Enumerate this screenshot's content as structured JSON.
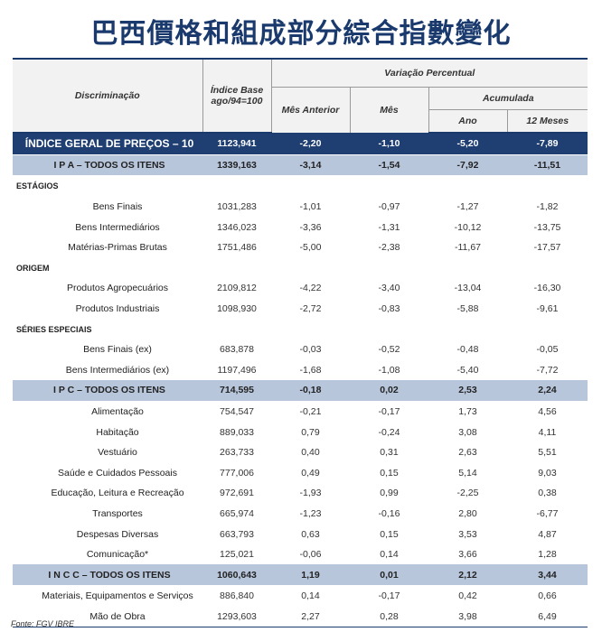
{
  "title": "巴西價格和組成部分綜合指數變化",
  "header": {
    "discriminacao": "Discriminação",
    "indice_base": "Índice Base ago/94=100",
    "variacao": "Variação Percentual",
    "mes_anterior": "Mês Anterior",
    "mes": "Mês",
    "acumulada": "Acumulada",
    "ano": "Ano",
    "doze_meses": "12 Meses"
  },
  "rows": [
    {
      "type": "general",
      "label": "ÍNDICE GERAL DE PREÇOS – 10",
      "index": "1123,941",
      "mes_anterior": "-2,20",
      "mes": "-1,10",
      "ano": "-5,20",
      "doze": "-7,89"
    },
    {
      "type": "group",
      "label": "I P A – TODOS OS ITENS",
      "index": "1339,163",
      "mes_anterior": "-3,14",
      "mes": "-1,54",
      "ano": "-7,92",
      "doze": "-11,51"
    },
    {
      "type": "section",
      "label": "ESTÁGIOS"
    },
    {
      "type": "item",
      "label": "Bens Finais",
      "index": "1031,283",
      "mes_anterior": "-1,01",
      "mes": "-0,97",
      "ano": "-1,27",
      "doze": "-1,82"
    },
    {
      "type": "item",
      "label": "Bens Intermediários",
      "index": "1346,023",
      "mes_anterior": "-3,36",
      "mes": "-1,31",
      "ano": "-10,12",
      "doze": "-13,75"
    },
    {
      "type": "item",
      "label": "Matérias-Primas Brutas",
      "index": "1751,486",
      "mes_anterior": "-5,00",
      "mes": "-2,38",
      "ano": "-11,67",
      "doze": "-17,57"
    },
    {
      "type": "section",
      "label": "ORIGEM"
    },
    {
      "type": "item",
      "label": "Produtos Agropecuários",
      "index": "2109,812",
      "mes_anterior": "-4,22",
      "mes": "-3,40",
      "ano": "-13,04",
      "doze": "-16,30"
    },
    {
      "type": "item",
      "label": "Produtos Industriais",
      "index": "1098,930",
      "mes_anterior": "-2,72",
      "mes": "-0,83",
      "ano": "-5,88",
      "doze": "-9,61"
    },
    {
      "type": "section",
      "label": "SÉRIES ESPECIAIS"
    },
    {
      "type": "item",
      "label": "Bens Finais (ex)",
      "index": "683,878",
      "mes_anterior": "-0,03",
      "mes": "-0,52",
      "ano": "-0,48",
      "doze": "-0,05"
    },
    {
      "type": "item",
      "label": "Bens Intermediários (ex)",
      "index": "1197,496",
      "mes_anterior": "-1,68",
      "mes": "-1,08",
      "ano": "-5,40",
      "doze": "-7,72"
    },
    {
      "type": "group",
      "label": "I P C – TODOS OS ITENS",
      "index": "714,595",
      "mes_anterior": "-0,18",
      "mes": "0,02",
      "ano": "2,53",
      "doze": "2,24"
    },
    {
      "type": "item",
      "label": "Alimentação",
      "index": "754,547",
      "mes_anterior": "-0,21",
      "mes": "-0,17",
      "ano": "1,73",
      "doze": "4,56"
    },
    {
      "type": "item",
      "label": "Habitação",
      "index": "889,033",
      "mes_anterior": "0,79",
      "mes": "-0,24",
      "ano": "3,08",
      "doze": "4,11"
    },
    {
      "type": "item",
      "label": "Vestuário",
      "index": "263,733",
      "mes_anterior": "0,40",
      "mes": "0,31",
      "ano": "2,63",
      "doze": "5,51"
    },
    {
      "type": "item",
      "label": "Saúde e Cuidados Pessoais",
      "index": "777,006",
      "mes_anterior": "0,49",
      "mes": "0,15",
      "ano": "5,14",
      "doze": "9,03"
    },
    {
      "type": "item",
      "label": "Educação, Leitura e Recreação",
      "index": "972,691",
      "mes_anterior": "-1,93",
      "mes": "0,99",
      "ano": "-2,25",
      "doze": "0,38"
    },
    {
      "type": "item",
      "label": "Transportes",
      "index": "665,974",
      "mes_anterior": "-1,23",
      "mes": "-0,16",
      "ano": "2,80",
      "doze": "-6,77"
    },
    {
      "type": "item",
      "label": "Despesas Diversas",
      "index": "663,793",
      "mes_anterior": "0,63",
      "mes": "0,15",
      "ano": "3,53",
      "doze": "4,87"
    },
    {
      "type": "item",
      "label": "Comunicação*",
      "index": "125,021",
      "mes_anterior": "-0,06",
      "mes": "0,14",
      "ano": "3,66",
      "doze": "1,28"
    },
    {
      "type": "group",
      "label": "I N C C – TODOS OS ITENS",
      "index": "1060,643",
      "mes_anterior": "1,19",
      "mes": "0,01",
      "ano": "2,12",
      "doze": "3,44"
    },
    {
      "type": "item",
      "label": "Materiais, Equipamentos e Serviços",
      "index": "886,840",
      "mes_anterior": "0,14",
      "mes": "-0,17",
      "ano": "0,42",
      "doze": "0,66"
    },
    {
      "type": "item",
      "label": "Mão de Obra",
      "index": "1293,603",
      "mes_anterior": "2,27",
      "mes": "0,28",
      "ano": "3,98",
      "doze": "6,49"
    }
  ],
  "source": "Fonte: FGV IBRE",
  "colors": {
    "title": "#1a3a6e",
    "general_row_bg": "#1f3f73",
    "group_row_bg": "#b8c6dc"
  }
}
